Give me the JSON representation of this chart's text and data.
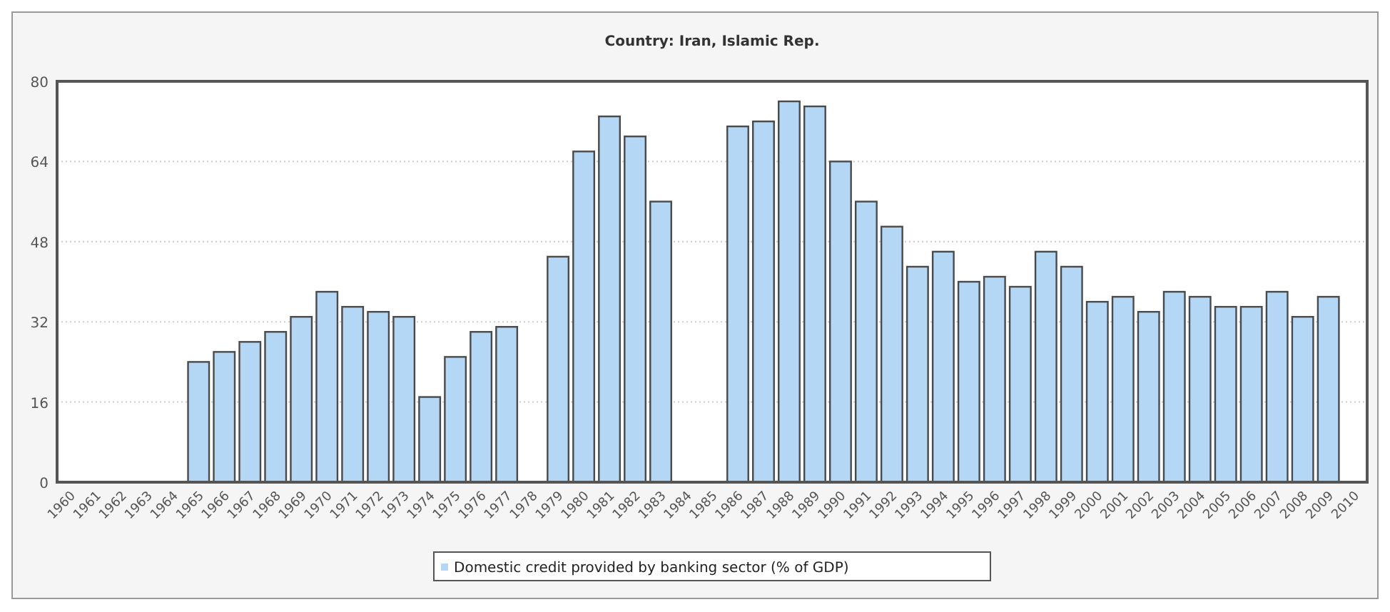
{
  "chart_data": {
    "type": "bar",
    "title": "Country: Iran, Islamic Rep.",
    "categories": [
      "1960",
      "1961",
      "1962",
      "1963",
      "1964",
      "1965",
      "1966",
      "1967",
      "1968",
      "1969",
      "1970",
      "1971",
      "1972",
      "1973",
      "1974",
      "1975",
      "1976",
      "1977",
      "1978",
      "1979",
      "1980",
      "1981",
      "1982",
      "1983",
      "1984",
      "1985",
      "1986",
      "1987",
      "1988",
      "1989",
      "1990",
      "1991",
      "1992",
      "1993",
      "1994",
      "1995",
      "1996",
      "1997",
      "1998",
      "1999",
      "2000",
      "2001",
      "2002",
      "2003",
      "2004",
      "2005",
      "2006",
      "2007",
      "2008",
      "2009",
      "2010"
    ],
    "series": [
      {
        "name": "Domestic credit provided by banking sector (% of GDP)",
        "color": "#b3d7f5",
        "values": [
          null,
          null,
          null,
          null,
          null,
          24,
          26,
          28,
          30,
          33,
          38,
          35,
          34,
          33,
          17,
          25,
          30,
          31,
          null,
          45,
          66,
          73,
          69,
          56,
          null,
          null,
          71,
          72,
          76,
          75,
          64,
          56,
          51,
          43,
          46,
          40,
          41,
          39,
          46,
          43,
          36,
          37,
          34,
          38,
          37,
          35,
          35,
          38,
          33,
          37,
          null
        ]
      }
    ],
    "ylim": [
      0,
      80
    ],
    "yticks": [
      0,
      16,
      32,
      48,
      64,
      80
    ],
    "grid": "y",
    "legend": "bottom"
  }
}
